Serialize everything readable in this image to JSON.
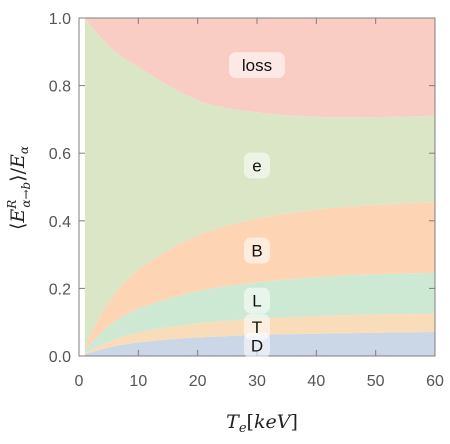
{
  "chart_data": {
    "type": "area",
    "stacked": true,
    "xlabel": "T_e[keV]",
    "ylabel": "⟨E^R_{α→b}⟩/E_α",
    "xlim": [
      0,
      60
    ],
    "ylim": [
      0,
      1.0
    ],
    "x_ticks": [
      "0",
      "10",
      "20",
      "30",
      "40",
      "50",
      "60"
    ],
    "y_ticks": [
      "0.0",
      "0.2",
      "0.4",
      "0.6",
      "0.8",
      "1.0"
    ],
    "grid": false,
    "x": [
      1,
      5,
      10,
      20,
      30,
      40,
      50,
      60
    ],
    "series": [
      {
        "name": "D",
        "color": "#cbd6e6",
        "values": [
          0.005,
          0.025,
          0.04,
          0.055,
          0.062,
          0.066,
          0.069,
          0.071
        ]
      },
      {
        "name": "T",
        "color": "#f9dcba",
        "values": [
          0.004,
          0.018,
          0.03,
          0.042,
          0.048,
          0.052,
          0.054,
          0.055
        ]
      },
      {
        "name": "L",
        "color": "#cde8d3",
        "values": [
          0.01,
          0.045,
          0.07,
          0.095,
          0.108,
          0.115,
          0.119,
          0.12
        ]
      },
      {
        "name": "B",
        "color": "#fdd5b4",
        "values": [
          0.01,
          0.07,
          0.115,
          0.165,
          0.188,
          0.2,
          0.205,
          0.21
        ]
      },
      {
        "name": "e",
        "color": "#dae6c6",
        "values": [
          0.97,
          0.76,
          0.6,
          0.4,
          0.315,
          0.275,
          0.26,
          0.255
        ]
      },
      {
        "name": "loss",
        "color": "#f9cdc4",
        "values": [
          0.001,
          0.082,
          0.145,
          0.243,
          0.279,
          0.292,
          0.293,
          0.289
        ]
      }
    ]
  }
}
